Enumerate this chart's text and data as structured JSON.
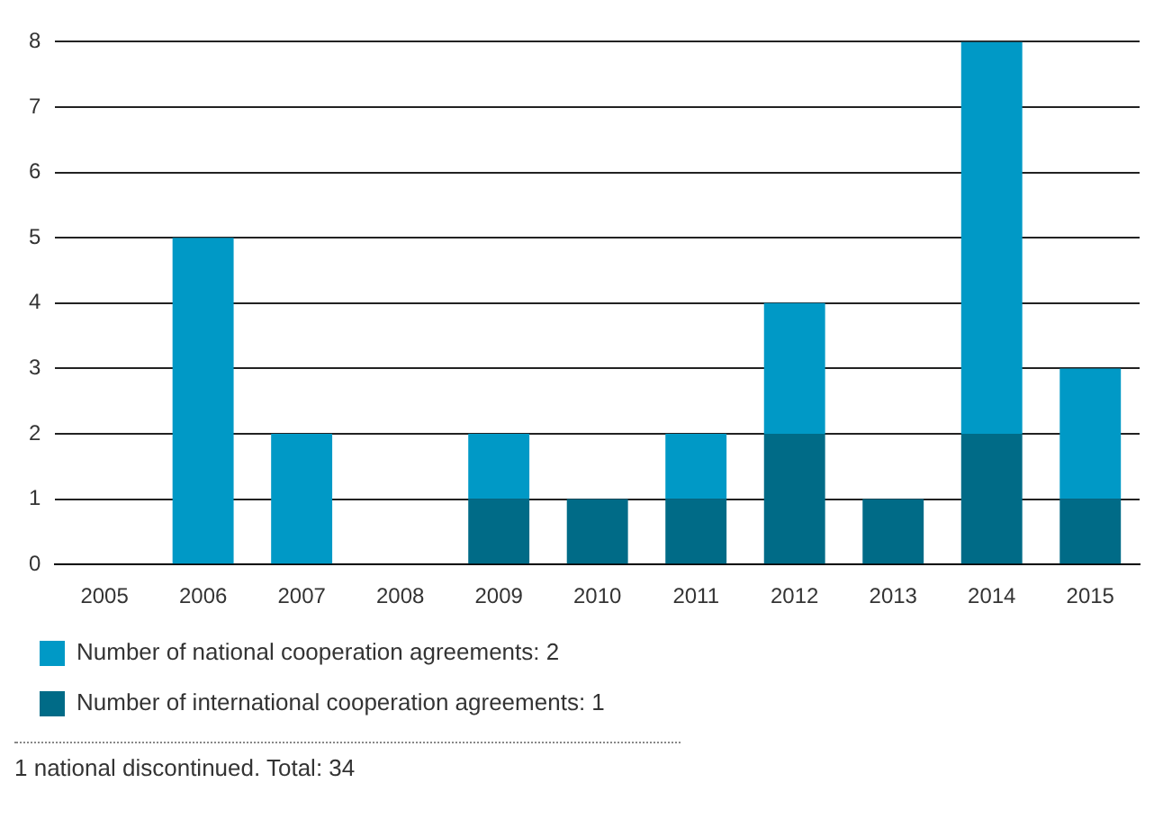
{
  "chart_data": {
    "type": "bar",
    "categories": [
      "2005",
      "2006",
      "2007",
      "2008",
      "2009",
      "2010",
      "2011",
      "2012",
      "2013",
      "2014",
      "2015"
    ],
    "series": [
      {
        "name": "Number of international cooperation agreements: 1",
        "color": "#006b87",
        "values": [
          0,
          0,
          0,
          0,
          1,
          1,
          1,
          2,
          1,
          2,
          1
        ]
      },
      {
        "name": "Number of national cooperation agreements: 2",
        "color": "#0099c6",
        "values": [
          0,
          5,
          2,
          0,
          1,
          0,
          1,
          2,
          0,
          6,
          2
        ]
      }
    ],
    "stacked": true,
    "ylim": [
      0,
      8
    ],
    "yticks": [
      0,
      1,
      2,
      3,
      4,
      5,
      6,
      7,
      8
    ],
    "grid": "y",
    "legend": "bottom left",
    "annotations": [
      "1 national discontinued. Total: 34"
    ]
  }
}
